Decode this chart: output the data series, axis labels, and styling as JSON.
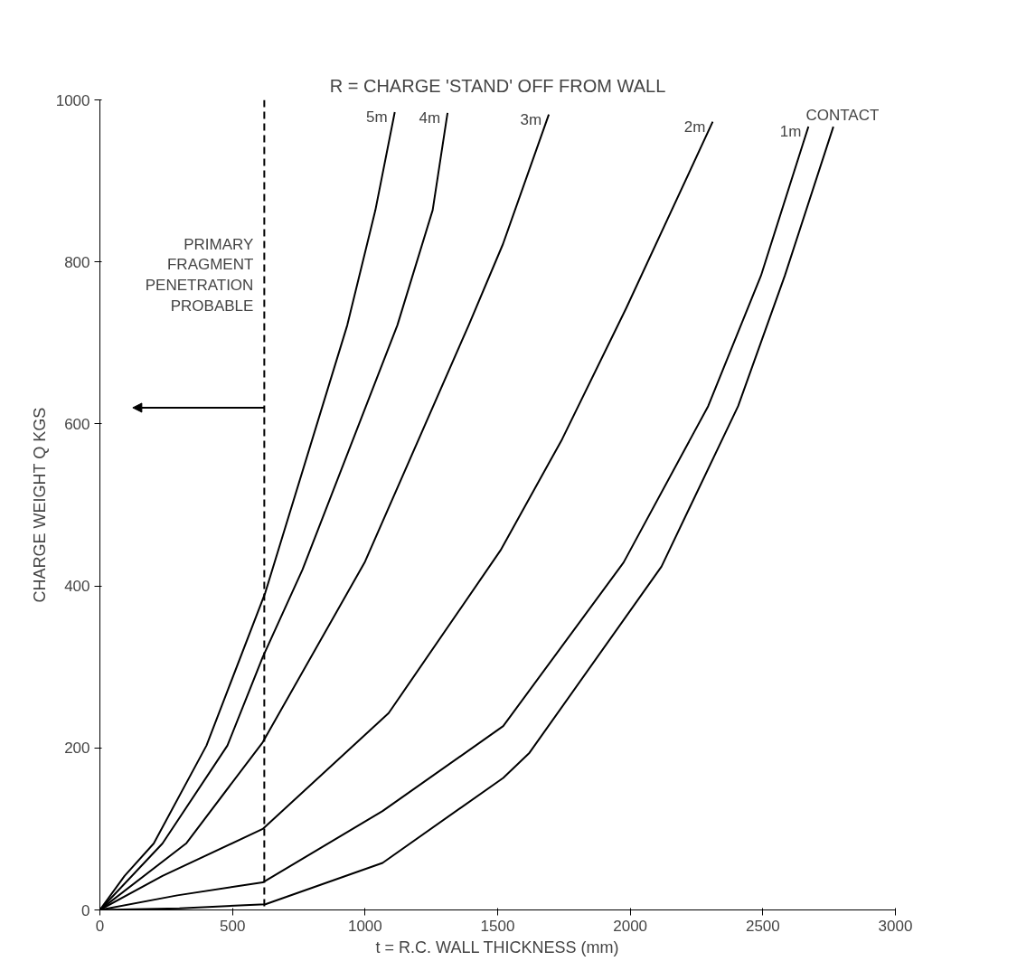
{
  "chart_data": {
    "type": "line",
    "title": "R = CHARGE 'STAND' OFF FROM WALL",
    "xlabel": "t = R.C. WALL THICKNESS (mm)",
    "ylabel": "CHARGE WEIGHT Q KGS",
    "xlim": [
      0,
      3000
    ],
    "ylim": [
      0,
      1000
    ],
    "xticks": [
      0,
      500,
      1000,
      1500,
      2000,
      2500,
      3000
    ],
    "yticks": [
      0,
      200,
      400,
      600,
      800,
      1000
    ],
    "grid": false,
    "legend": false,
    "marker": "none",
    "line_style": "solid",
    "series": [
      {
        "name": "5m",
        "color": "#000000",
        "x": [
          0,
          93,
          203,
          402,
          624,
          933,
          1039,
          1112
        ],
        "values": [
          0,
          42,
          82,
          203,
          392,
          722,
          864,
          985
        ]
      },
      {
        "name": "4m",
        "color": "#000000",
        "x": [
          0,
          236,
          481,
          614,
          764,
          1122,
          1255,
          1311
        ],
        "values": [
          0,
          82,
          203,
          312,
          420,
          722,
          864,
          984
        ]
      },
      {
        "name": "3m",
        "color": "#000000",
        "x": [
          0,
          325,
          614,
          1000,
          1391,
          1520,
          1693
        ],
        "values": [
          0,
          82,
          207,
          430,
          722,
          822,
          982
        ]
      },
      {
        "name": "2m",
        "color": "#000000",
        "x": [
          0,
          236,
          614,
          1089,
          1511,
          1743,
          1985,
          2311
        ],
        "values": [
          0,
          42,
          100,
          243,
          444,
          581,
          743,
          973
        ]
      },
      {
        "name": "1m",
        "color": "#000000",
        "x": [
          0,
          292,
          614,
          1066,
          1521,
          1975,
          2294,
          2493,
          2672
        ],
        "values": [
          0,
          18,
          34,
          122,
          227,
          429,
          622,
          783,
          967
        ]
      },
      {
        "name": "CONTACT",
        "color": "#000000",
        "x": [
          0,
          300,
          624,
          1066,
          1521,
          1620,
          2118,
          2407,
          2583,
          2766
        ],
        "values": [
          0,
          2,
          7,
          58,
          163,
          194,
          424,
          622,
          783,
          967
        ]
      }
    ],
    "ref_lines": [
      {
        "axis": "x",
        "value": 620,
        "label": "PRIMARY\nFRAGMENT\nPENETRATION\nPROBABLE",
        "color": "#000000",
        "line_style": "dashed"
      }
    ]
  }
}
